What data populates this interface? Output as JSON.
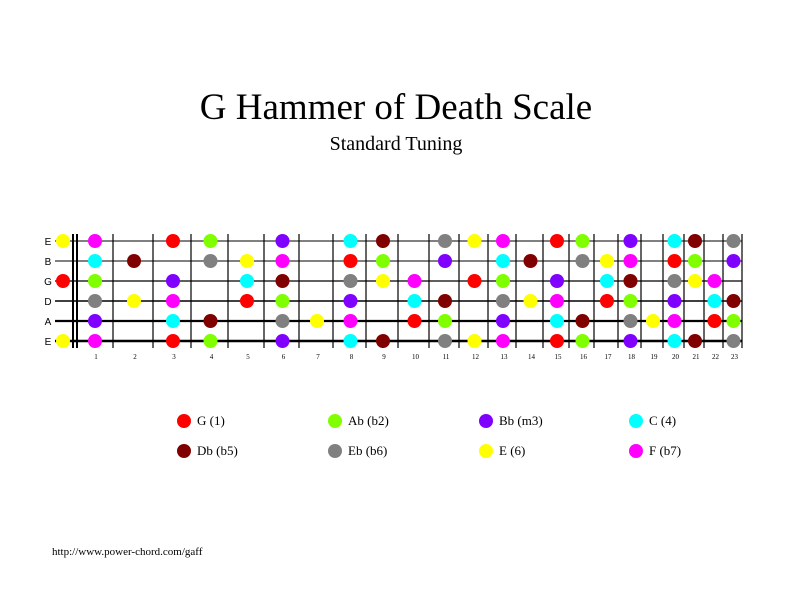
{
  "title": "G Hammer of Death Scale",
  "subtitle": "Standard Tuning",
  "footer_url": "http://www.power-chord.com/gaff",
  "colors": {
    "G": "#ff0000",
    "Ab": "#80ff00",
    "Bb": "#8000ff",
    "C": "#00ffff",
    "Db": "#800000",
    "Eb": "#808080",
    "E": "#ffff00",
    "F": "#ff00ff"
  },
  "legend": [
    {
      "note": "G",
      "label": "G (1)"
    },
    {
      "note": "Ab",
      "label": "Ab (b2)"
    },
    {
      "note": "Bb",
      "label": "Bb (m3)"
    },
    {
      "note": "C",
      "label": "C (4)"
    },
    {
      "note": "Db",
      "label": "Db (b5)"
    },
    {
      "note": "Eb",
      "label": "Eb (b6)"
    },
    {
      "note": "E",
      "label": "E (6)"
    },
    {
      "note": "F",
      "label": "F (b7)"
    }
  ],
  "strings": [
    {
      "label": "E",
      "open_semitone": 4
    },
    {
      "label": "B",
      "open_semitone": 11
    },
    {
      "label": "G",
      "open_semitone": 7
    },
    {
      "label": "D",
      "open_semitone": 2
    },
    {
      "label": "A",
      "open_semitone": 9
    },
    {
      "label": "E",
      "open_semitone": 4
    }
  ],
  "fret_numbers": [
    "1",
    "2",
    "3",
    "4",
    "5",
    "6",
    "7",
    "8",
    "9",
    "10",
    "11",
    "12",
    "13",
    "14",
    "15",
    "16",
    "17",
    "18",
    "19",
    "20",
    "21",
    "22",
    "23"
  ],
  "scale_semitones": {
    "7": "G",
    "8": "Ab",
    "10": "Bb",
    "0": "C",
    "1": "Db",
    "3": "Eb",
    "4": "E",
    "5": "F"
  }
}
